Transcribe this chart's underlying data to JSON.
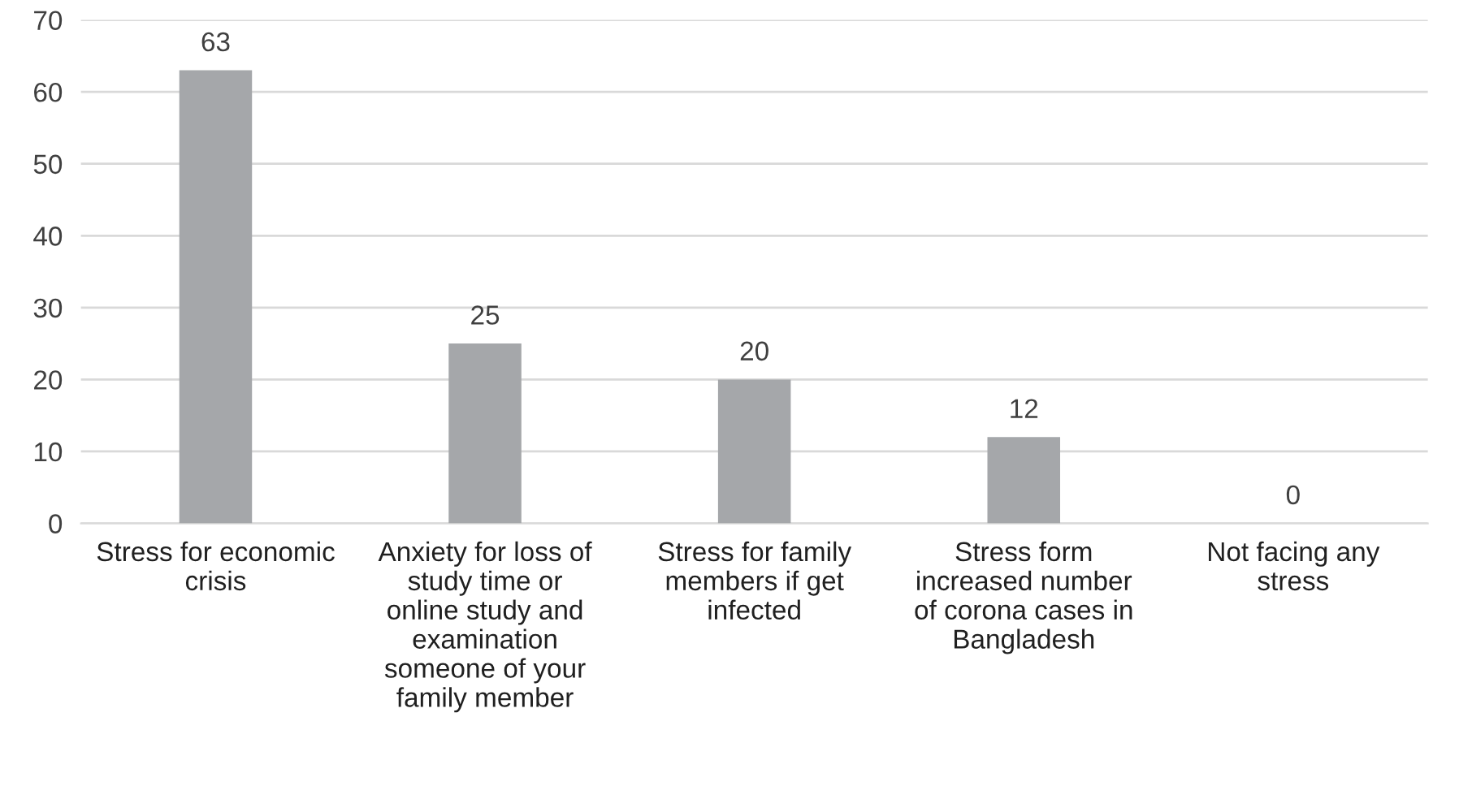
{
  "chart_data": {
    "type": "bar",
    "categories": [
      "Stress for economic\ncrisis",
      "Anxiety for loss of\nstudy time or\nonline study and\nexamination\nsomeone of your\nfamily member",
      "Stress for family\nmembers if get\ninfected",
      "Stress form\nincreased number\nof corona cases in\nBangladesh",
      "Not facing any\nstress"
    ],
    "values": [
      63,
      25,
      20,
      12,
      0
    ],
    "color": "#a5a7aa",
    "ylim": [
      0,
      70
    ],
    "yticks": [
      0,
      10,
      20,
      30,
      40,
      50,
      60,
      70
    ],
    "grid": "y",
    "data_labels": true,
    "legend": false
  }
}
